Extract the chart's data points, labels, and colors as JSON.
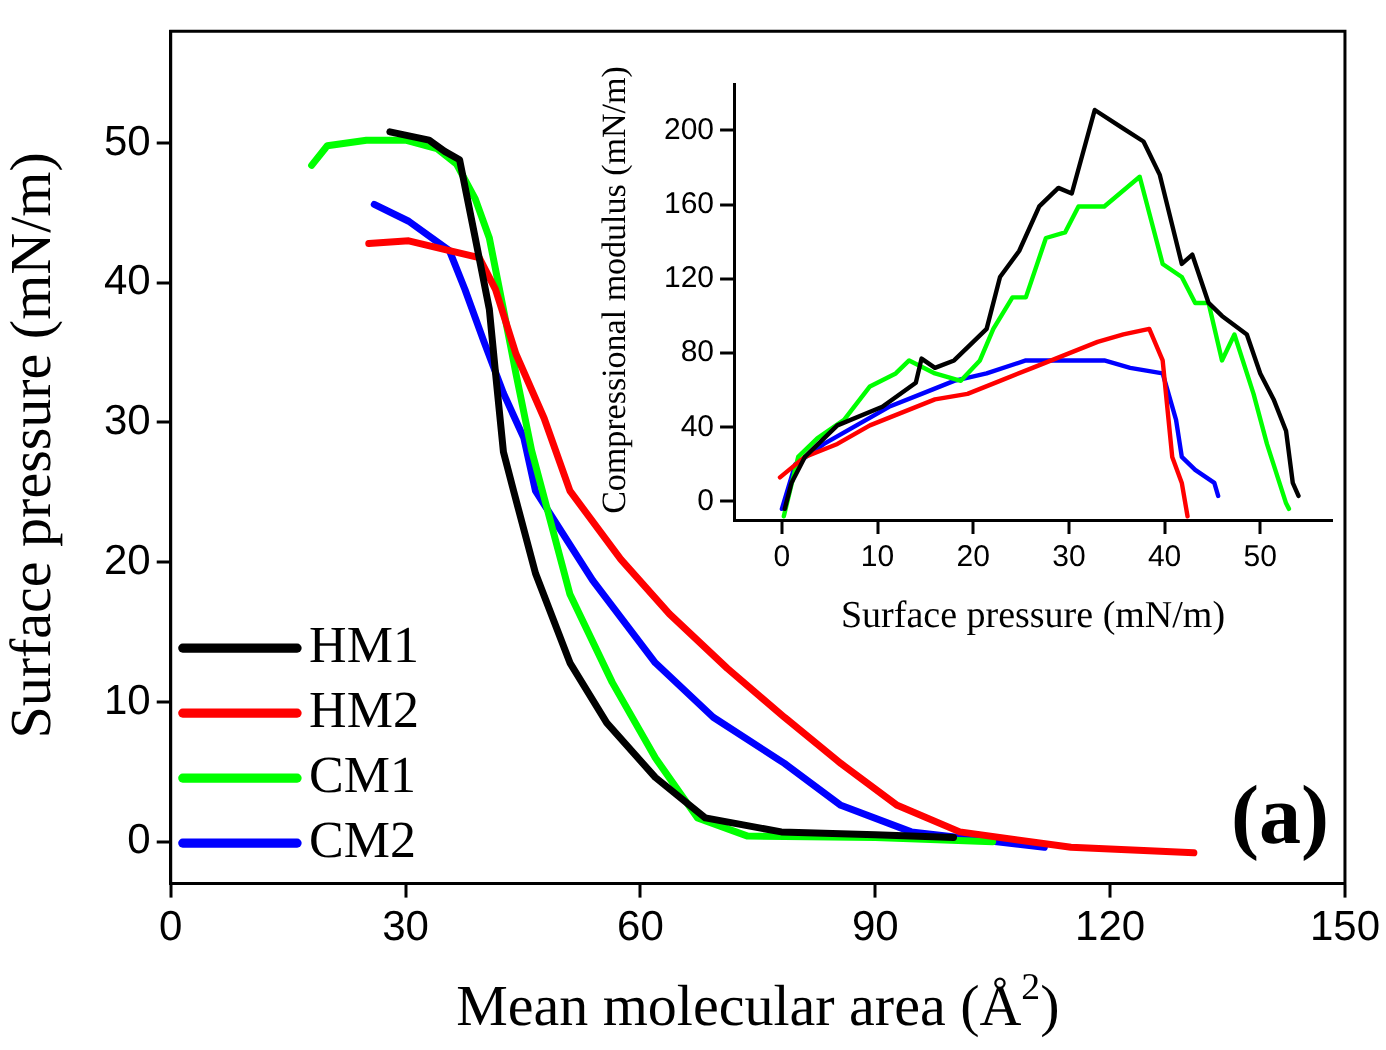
{
  "chart_data": [
    {
      "type": "line",
      "xlabel": "Mean molecular area (Å$^{2}$)",
      "ylabel": "Surface pressure (mN/m)",
      "xlim": [
        0,
        150
      ],
      "xticks": [
        0,
        30,
        60,
        90,
        120,
        150
      ],
      "ylim": [
        -3,
        58
      ],
      "yticks": [
        0,
        10,
        20,
        30,
        40,
        50
      ],
      "legend": "bottom left",
      "annotations": [
        "(a)"
      ],
      "series": [
        {
          "name": "HM1",
          "color": "#000000",
          "x": [
            28,
            33,
            35,
            36.9,
            38.9,
            40.7,
            41.5,
            42.5,
            43.8,
            46.6,
            51,
            55.7,
            61.9,
            68.3,
            78,
            90,
            100
          ],
          "values": [
            50.8,
            50.2,
            49.4,
            48.8,
            43.2,
            38.1,
            33.5,
            27.9,
            25.1,
            19.2,
            12.8,
            8.5,
            4.6,
            1.7,
            0.7,
            0.5,
            0.3
          ]
        },
        {
          "name": "HM2",
          "color": "#ff0000",
          "x": [
            25.3,
            30.4,
            35.6,
            39.4,
            41.5,
            44.1,
            47.7,
            51,
            57.5,
            63.7,
            71.1,
            78.4,
            85.6,
            92.8,
            100.8,
            115,
            130.7
          ],
          "values": [
            42.8,
            43,
            42.3,
            41.8,
            39.5,
            34.9,
            30.3,
            25.1,
            20.2,
            16.3,
            12.4,
            8.9,
            5.6,
            2.6,
            0.7,
            -0.4,
            -0.8
          ]
        },
        {
          "name": "CM1",
          "color": "#00ff00",
          "x": [
            18,
            20,
            25,
            30,
            34,
            36.5,
            38.9,
            40.7,
            42.5,
            44.1,
            46.1,
            51,
            56.4,
            61.9,
            67.3,
            73.7,
            90,
            105
          ],
          "values": [
            48.4,
            49.8,
            50.2,
            50.2,
            49.6,
            48.5,
            46,
            43.2,
            38.1,
            33.5,
            28,
            17.7,
            11.4,
            6,
            1.7,
            0.4,
            0.3,
            0
          ]
        },
        {
          "name": "CM2",
          "color": "#0000ff",
          "x": [
            26,
            30.4,
            35.6,
            37.6,
            40,
            42.5,
            45.1,
            46.6,
            53.9,
            61.9,
            69.3,
            78.4,
            85.6,
            94.6,
            111.6
          ],
          "values": [
            45.6,
            44.4,
            42.3,
            39.5,
            35.8,
            32.1,
            28.9,
            25.1,
            18.7,
            12.8,
            8.9,
            5.6,
            2.6,
            0.7,
            -0.4
          ]
        }
      ]
    },
    {
      "type": "line",
      "xlabel": "Surface pressure (mN/m)",
      "ylabel": "Compressional modulus (mN/m)",
      "xlim": [
        -5,
        57.5
      ],
      "xticks": [
        0,
        10,
        20,
        30,
        40,
        50
      ],
      "ylim": [
        -10,
        225
      ],
      "yticks": [
        0,
        40,
        80,
        120,
        160,
        200
      ],
      "series": [
        {
          "color": "#000000",
          "x": [
            0.3,
            1,
            2.4,
            5.8,
            10.5,
            14,
            14.6,
            16,
            18,
            20,
            21.4,
            22.8,
            24.8,
            26.9,
            28.9,
            30.3,
            32.7,
            35.7,
            37.8,
            39.5,
            41.8,
            42.9,
            44.6,
            46,
            48.6,
            50,
            51.4,
            52.7,
            53.4,
            54
          ],
          "values": [
            -4,
            10,
            24,
            41,
            51,
            64,
            77,
            72,
            76,
            86,
            93,
            121,
            135,
            159,
            169,
            166,
            211,
            201,
            194,
            176,
            128,
            133,
            107,
            100,
            90,
            69,
            55,
            38,
            10,
            3
          ]
        },
        {
          "color": "#ff0000",
          "x": [
            -0.2,
            2.4,
            5.8,
            9.2,
            12.6,
            16,
            19.4,
            22.8,
            26.2,
            29.6,
            33,
            35.7,
            38.4,
            39.8,
            40.8,
            41.8,
            42.4
          ],
          "values": [
            13,
            24,
            31,
            41,
            48,
            55,
            58,
            65,
            72,
            79,
            86,
            90,
            93,
            76,
            24,
            10,
            -8
          ]
        },
        {
          "color": "#00ff00",
          "x": [
            0.2,
            1.7,
            3.7,
            6.5,
            9.2,
            11.9,
            13.3,
            16,
            18.7,
            20.7,
            22.1,
            24.1,
            25.5,
            27.6,
            29.6,
            31,
            33.7,
            37.4,
            39.8,
            41.8,
            43.2,
            44.6,
            46,
            47.3,
            49.3,
            50.7,
            52.7,
            53
          ],
          "values": [
            -8,
            24,
            34,
            44,
            62,
            69,
            76,
            69,
            65,
            76,
            93,
            110,
            110,
            142,
            145,
            159,
            159,
            175,
            128,
            121,
            107,
            107,
            76,
            90,
            58,
            31,
            -1,
            -4
          ]
        },
        {
          "color": "#0000ff",
          "x": [
            0,
            1.4,
            4.4,
            7.8,
            11.2,
            14.6,
            18,
            21.4,
            25.5,
            29.6,
            33.7,
            36.4,
            39.8,
            41.2,
            41.8,
            43.2,
            45.2,
            45.6
          ],
          "values": [
            -4,
            20,
            31,
            41,
            51,
            58,
            65,
            69,
            76,
            76,
            76,
            72,
            69,
            44,
            24,
            17,
            10,
            3
          ]
        }
      ]
    }
  ]
}
